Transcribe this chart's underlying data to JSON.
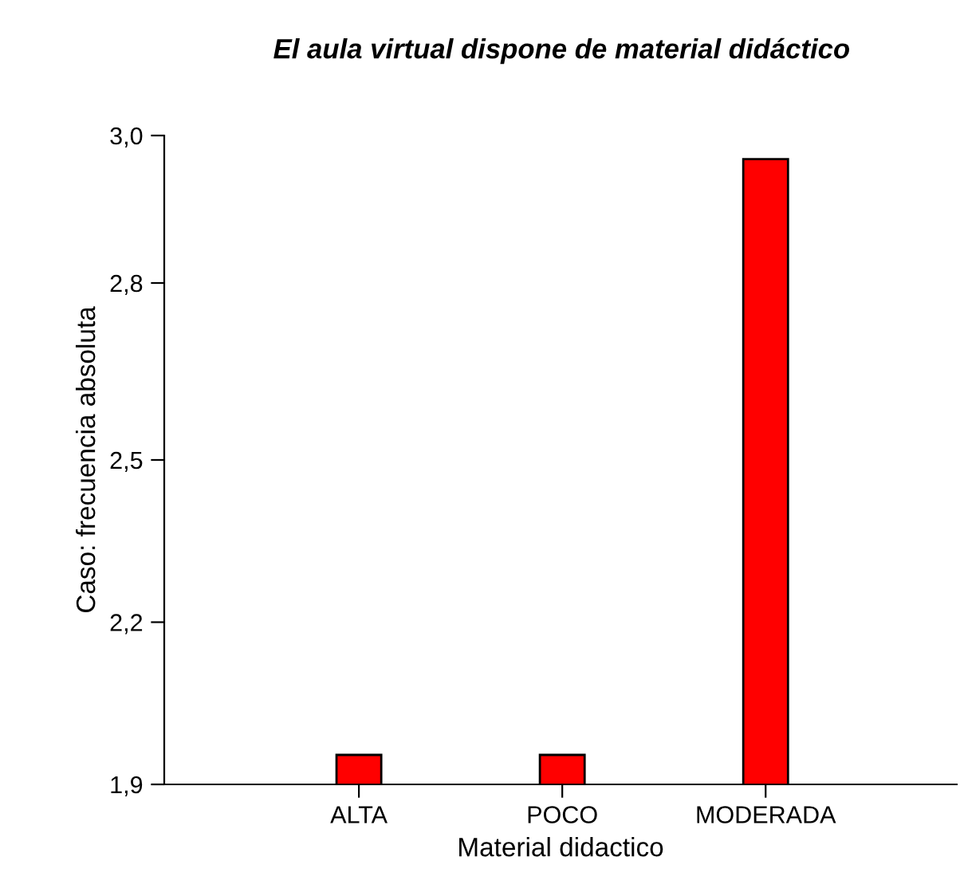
{
  "chart_data": {
    "type": "bar",
    "title": "El aula virtual dispone de material didáctico",
    "xlabel": "Material didactico",
    "ylabel": "Caso: frecuencia absoluta",
    "categories": [
      "ALTA",
      "POCO",
      "MODERADA"
    ],
    "series": [
      {
        "color": "#ff0000",
        "values": [
          1.95,
          1.95,
          2.96
        ]
      }
    ],
    "ylim": [
      1.9,
      3.0
    ],
    "yticks": [
      {
        "value": 1.9,
        "label": "1,9"
      },
      {
        "value": 2.175,
        "label": "2,2"
      },
      {
        "value": 2.45,
        "label": "2,5"
      },
      {
        "value": 2.75,
        "label": "2,8"
      },
      {
        "value": 3.0,
        "label": "3,0"
      }
    ],
    "grid": false,
    "legend": false
  }
}
